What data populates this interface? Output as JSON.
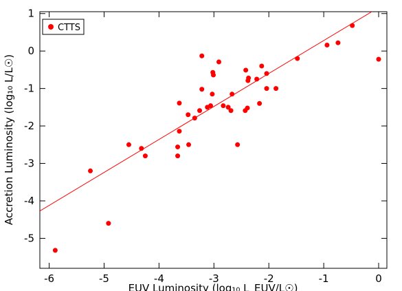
{
  "chart_data": {
    "type": "scatter",
    "xlabel": "EUV Luminosity (log₁₀ L_EUV/L☉)",
    "ylabel": "Accretion Luminosity (log₁₀ L/L☉)",
    "xlim": [
      -6.17,
      0.15
    ],
    "ylim": [
      -5.8,
      1.05
    ],
    "xticks": [
      -6,
      -5,
      -4,
      -3,
      -2,
      -1,
      0
    ],
    "yticks": [
      -5,
      -4,
      -3,
      -2,
      -1,
      0,
      1
    ],
    "legend": "upper left",
    "series": [
      {
        "name": "CTTS",
        "color": "#ff0000",
        "x": [
          -0.48,
          0,
          -0.74,
          -0.94,
          -1.48,
          -1.87,
          -2.04,
          -2.04,
          -2.13,
          -2.22,
          -2.17,
          -2.37,
          -2.38,
          -2.42,
          -2.39,
          -2.43,
          -2.67,
          -2.69,
          -2.74,
          -2.83,
          -2.57,
          -2.91,
          -3.02,
          -3.01,
          -3.03,
          -3.06,
          -3.12,
          -3.22,
          -3.22,
          -3.26,
          -3.35,
          -3.47,
          -3.46,
          -3.63,
          -3.63,
          -3.66,
          -3.66,
          -4.25,
          -4.32,
          -4.55,
          -5.25,
          -4.92,
          -5.89
        ],
        "values": [
          0.68,
          -0.22,
          0.22,
          0.16,
          -0.2,
          -1.0,
          -0.6,
          -1.0,
          -0.4,
          -0.75,
          -1.4,
          -0.72,
          -0.79,
          -0.51,
          -1.52,
          -1.59,
          -1.15,
          -1.59,
          -1.5,
          -1.46,
          -2.5,
          -0.29,
          -0.57,
          -0.64,
          -1.15,
          -1.46,
          -1.5,
          -0.13,
          -1.02,
          -1.59,
          -1.79,
          -1.7,
          -2.5,
          -1.39,
          -2.14,
          -2.56,
          -2.8,
          -2.8,
          -2.6,
          -2.5,
          -3.2,
          -4.6,
          -5.32
        ]
      }
    ],
    "fit": {
      "slope": 0.88,
      "intercept": 1.16,
      "color": "#ff0000"
    }
  }
}
